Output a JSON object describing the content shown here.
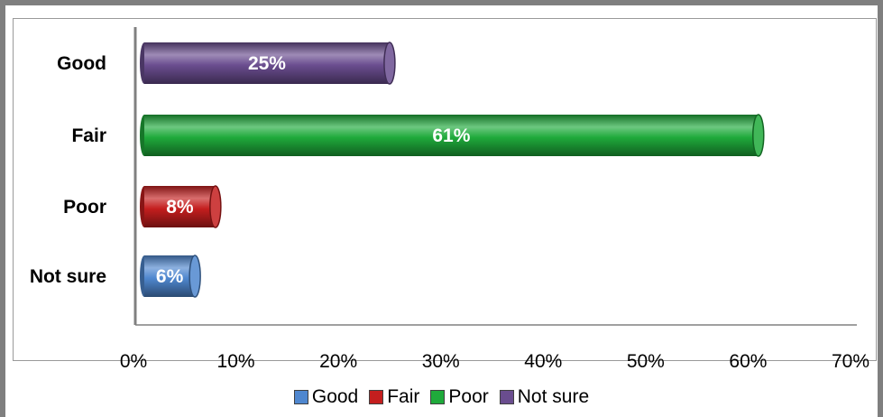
{
  "chart_data": {
    "type": "bar",
    "orientation": "horizontal",
    "categories": [
      "Good",
      "Fair",
      "Poor",
      "Not sure"
    ],
    "values": [
      25,
      61,
      8,
      6
    ],
    "data_labels": [
      "25%",
      "61%",
      "8%",
      "6%"
    ],
    "bar_colors": [
      "#6a4d8f",
      "#1faa3b",
      "#c41e1e",
      "#4f87cf"
    ],
    "x_ticks": [
      "0%",
      "10%",
      "20%",
      "30%",
      "40%",
      "50%",
      "60%",
      "70%"
    ],
    "xlim": [
      0,
      70
    ],
    "grid": false,
    "legend": {
      "placement": "bottom",
      "entries": [
        {
          "label": "Good",
          "color": "#4f87cf"
        },
        {
          "label": "Fair",
          "color": "#c41e1e"
        },
        {
          "label": "Poor",
          "color": "#1faa3b"
        },
        {
          "label": "Not sure",
          "color": "#6a4d8f"
        }
      ]
    }
  }
}
